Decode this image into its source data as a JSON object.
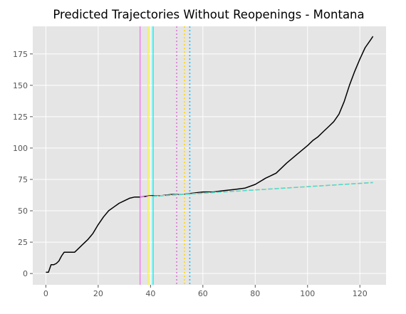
{
  "chart_data": {
    "type": "line",
    "title": "Predicted Trajectories Without Reopenings - Montana",
    "xlabel": "",
    "ylabel": "",
    "xlim": [
      -5,
      130
    ],
    "ylim": [
      -9,
      197
    ],
    "x_ticks": [
      0,
      20,
      40,
      60,
      80,
      100,
      120
    ],
    "y_ticks": [
      0,
      25,
      50,
      75,
      100,
      125,
      150,
      175
    ],
    "grid": true,
    "style": "ggplot",
    "series": [
      {
        "color": "#000000",
        "x": [
          0,
          1,
          2,
          3,
          4,
          5,
          6,
          7,
          8,
          9,
          10,
          11,
          12,
          14,
          16,
          18,
          20,
          22,
          24,
          26,
          28,
          30,
          32,
          34,
          36,
          40,
          44,
          48,
          52,
          56,
          60,
          64,
          68,
          72,
          76,
          80,
          84,
          88,
          92,
          96,
          100,
          102,
          104,
          106,
          108,
          110,
          112,
          114,
          116,
          118,
          120,
          122,
          124,
          125
        ],
        "y": [
          1,
          1,
          7,
          7,
          8,
          10,
          14,
          17,
          17,
          17,
          17,
          17,
          19,
          23,
          27,
          32,
          39,
          45,
          50,
          53,
          56,
          58,
          60,
          61,
          61,
          62,
          62,
          63,
          63,
          64,
          65,
          65,
          66,
          67,
          68,
          71,
          76,
          80,
          88,
          95,
          102,
          106,
          109,
          113,
          117,
          121,
          127,
          137,
          150,
          161,
          171,
          180,
          186,
          189
        ]
      },
      {
        "color": "#ee82ee",
        "dash": "dashed",
        "x": [
          36,
          125
        ],
        "y": [
          61,
          72.5
        ]
      },
      {
        "color": "#f0e68c",
        "dash": "dashed",
        "x": [
          39,
          125
        ],
        "y": [
          61.3,
          72.5
        ]
      },
      {
        "color": "#40e0d0",
        "dash": "dashed",
        "x": [
          41,
          125
        ],
        "y": [
          61.5,
          72.5
        ]
      }
    ],
    "vlines": [
      {
        "x": 36,
        "color": "#ee82ee",
        "style": "solid"
      },
      {
        "x": 39,
        "color": "#ffff00",
        "style": "solid"
      },
      {
        "x": 41,
        "color": "#00ffff",
        "style": "solid"
      },
      {
        "x": 50,
        "color": "#da70d6",
        "style": "dotted"
      },
      {
        "x": 53,
        "color": "#ffd700",
        "style": "dotted"
      },
      {
        "x": 55,
        "color": "#00bfff",
        "style": "dotted"
      }
    ],
    "colors": {
      "plot_background": "#e5e5e5",
      "grid": "#ffffff",
      "tick_label": "#555555",
      "title": "#000000"
    }
  }
}
